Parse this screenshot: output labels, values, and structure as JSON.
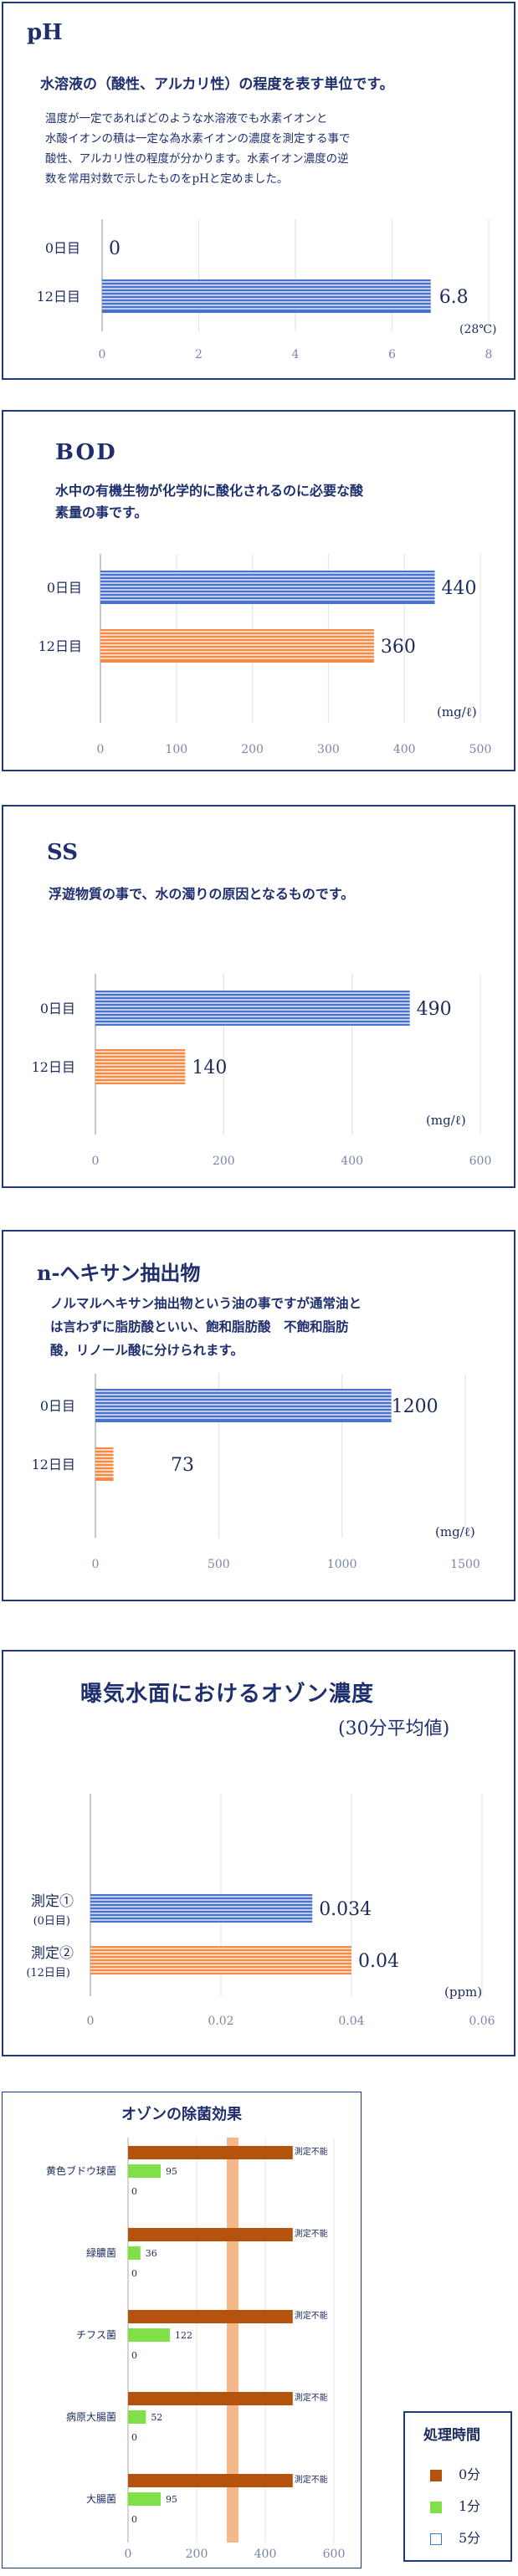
{
  "colors": {
    "blue": "#4a72c8",
    "orange": "#f08a44",
    "brown": "#b4520e",
    "green": "#7fe04a",
    "navy": "#1f2f6e"
  },
  "ph": {
    "title": "pH",
    "subtitle": "水溶液の（酸性、アルカリ性）の程度を表す単位です。",
    "desc": [
      "温度が一定であればどのような水溶液でも水素イオンと",
      "水酸イオンの積は一定な為水素イオンの濃度を測定する事で",
      "酸性、アルカリ性の程度が分かります。水素イオン濃度の逆",
      "数を常用対数で示したものをpHと定めました。"
    ],
    "unit": "(28℃)",
    "chart_data": {
      "type": "bar",
      "categories": [
        "0日目",
        "12日目"
      ],
      "values": [
        0,
        6.8
      ],
      "value_labels": [
        "0",
        "6.8"
      ],
      "xlim": [
        0,
        8
      ],
      "ticks": [
        "0",
        "2",
        "4",
        "6",
        "8"
      ]
    }
  },
  "bod": {
    "title": "BOD",
    "desc": [
      "水中の有機生物が化学的に酸化されるのに必要な酸",
      "素量の事です。"
    ],
    "unit": "(mg/ℓ)",
    "chart_data": {
      "type": "bar",
      "categories": [
        "0日目",
        "12日目"
      ],
      "values": [
        440,
        360
      ],
      "value_labels": [
        "440",
        "360"
      ],
      "xlim": [
        0,
        500
      ],
      "ticks": [
        "0",
        "100",
        "200",
        "300",
        "400",
        "500"
      ]
    }
  },
  "ss": {
    "title": "SS",
    "desc": [
      "浮遊物質の事で、水の濁りの原因となるものです。"
    ],
    "unit": "(mg/ℓ)",
    "chart_data": {
      "type": "bar",
      "categories": [
        "0日目",
        "12日目"
      ],
      "values": [
        490,
        140
      ],
      "value_labels": [
        "490",
        "140"
      ],
      "xlim": [
        0,
        600
      ],
      "ticks": [
        "0",
        "200",
        "400",
        "600"
      ]
    }
  },
  "hexane": {
    "title": "n-ヘキサン抽出物",
    "desc": [
      "ノルマルヘキサン抽出物という油の事ですが通常油と",
      "は言わずに脂肪酸といい、飽和脂肪酸　不飽和脂肪",
      "酸，リノール酸に分けられます。"
    ],
    "unit": "(mg/ℓ)",
    "chart_data": {
      "type": "bar",
      "categories": [
        "0日目",
        "12日目"
      ],
      "values": [
        1200,
        73
      ],
      "value_labels": [
        "1200",
        "73"
      ],
      "xlim": [
        0,
        1500
      ],
      "ticks": [
        "0",
        "500",
        "1000",
        "1500"
      ]
    }
  },
  "ozone": {
    "title": "曝気水面におけるオゾン濃度",
    "subtitle": "(30分平均値)",
    "unit": "(ppm)",
    "cat_main": [
      "測定①",
      "測定②"
    ],
    "cat_sub": [
      "(0日目)",
      "(12日目)"
    ],
    "chart_data": {
      "type": "bar",
      "categories": [
        "測定①(0日目)",
        "測定②(12日目)"
      ],
      "values": [
        0.034,
        0.04
      ],
      "value_labels": [
        "0.034",
        "0.04"
      ],
      "xlim": [
        0,
        0.06
      ],
      "ticks": [
        "0",
        "0.02",
        "0.04",
        "0.06"
      ]
    }
  },
  "sterilize": {
    "title": "オゾンの除菌効果",
    "not_measurable": "測定不能",
    "chart_data": {
      "type": "bar",
      "categories": [
        "黄色ブドウ球菌",
        "緑膿菌",
        "チフス菌",
        "病原大腸菌",
        "大腸菌"
      ],
      "series": [
        {
          "name": "0分",
          "values": [
            null,
            null,
            null,
            null,
            null
          ],
          "labels": [
            "測定不能",
            "測定不能",
            "測定不能",
            "測定不能",
            "測定不能"
          ]
        },
        {
          "name": "1分",
          "values": [
            95,
            36,
            122,
            52,
            95
          ],
          "labels": [
            "95",
            "36",
            "122",
            "52",
            "95"
          ]
        },
        {
          "name": "5分",
          "values": [
            0,
            0,
            0,
            0,
            0
          ],
          "labels": [
            "0",
            "0",
            "0",
            "0",
            "0"
          ]
        }
      ],
      "xlim": [
        0,
        600
      ],
      "ticks": [
        "0",
        "200",
        "400",
        "600"
      ]
    },
    "legend_title": "処理時間",
    "legend": [
      "0分",
      "1分",
      "5分"
    ]
  }
}
